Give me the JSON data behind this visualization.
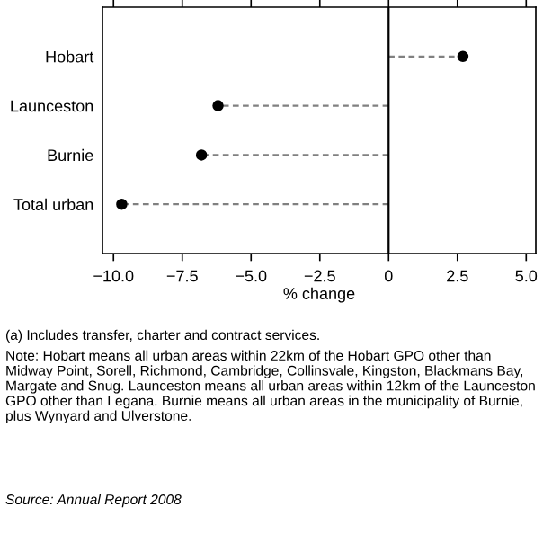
{
  "chart_data": {
    "type": "lollipop",
    "orientation": "horizontal",
    "categories": [
      "Hobart",
      "Launceston",
      "Burnie",
      "Total urban"
    ],
    "values": [
      2.7,
      -6.2,
      -6.8,
      -9.7
    ],
    "color": "#000000",
    "xlabel": "% change",
    "xlim": [
      -10.4,
      5.35
    ],
    "xticks": [
      {
        "value": -10,
        "label": "−10.0"
      },
      {
        "value": -7.5,
        "label": "−7.5"
      },
      {
        "value": -5,
        "label": "−5.0"
      },
      {
        "value": -2.5,
        "label": "−2.5"
      },
      0,
      {
        "value": 2.5,
        "label": "2.5"
      },
      {
        "value": 5,
        "label": "5.0"
      }
    ],
    "marker": "circle",
    "line_style": "dashed",
    "grid": false,
    "legend": false,
    "ref_lines": [
      {
        "axis": "x",
        "value": 0,
        "color": "#000000",
        "line_style": "solid"
      }
    ],
    "annotations": [
      "(a) Includes transfer, charter and contract services.",
      "Note: Hobart means all urban areas within 22km of the Hobart GPO other than Midway Point, Sorell, Richmond, Cambridge, Collinsvale, Kingston, Blackmans Bay, Margate and Snug. Launceston means all urban areas within 12km of the Launceston GPO other than Legana. Burnie means all urban areas in the municipality of Burnie, plus Wynyard and Ulverstone.",
      "Source: Annual Report 2008"
    ]
  }
}
